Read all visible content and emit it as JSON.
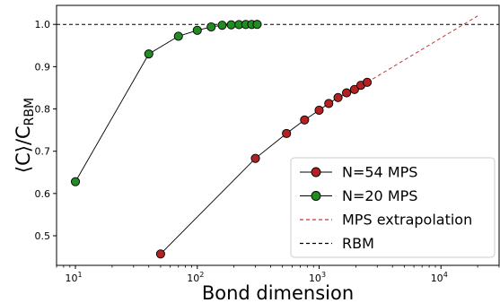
{
  "chart_data": {
    "type": "line",
    "xlabel": "Bond dimension",
    "ylabel_main": "⟨C⟩/C",
    "ylabel_sub": "RBM",
    "xscale": "log",
    "xlim": [
      7,
      30000
    ],
    "ylim": [
      0.43,
      1.045
    ],
    "xticks": [
      {
        "value": 10,
        "base": "10",
        "exp": "1"
      },
      {
        "value": 100,
        "base": "10",
        "exp": "2"
      },
      {
        "value": 1000,
        "base": "10",
        "exp": "3"
      },
      {
        "value": 10000,
        "base": "10",
        "exp": "4"
      }
    ],
    "yticks": [
      {
        "value": 0.5,
        "label": "0.5"
      },
      {
        "value": 0.6,
        "label": "0.6"
      },
      {
        "value": 0.7,
        "label": "0.7"
      },
      {
        "value": 0.8,
        "label": "0.8"
      },
      {
        "value": 0.9,
        "label": "0.9"
      },
      {
        "value": 1.0,
        "label": "1.0"
      }
    ],
    "legend_position": "lower right",
    "series": [
      {
        "name": "N=54 MPS",
        "kind": "markers-line",
        "color": "#b22222",
        "points": [
          {
            "x": 50,
            "y": 0.457
          },
          {
            "x": 300,
            "y": 0.683
          },
          {
            "x": 540,
            "y": 0.742
          },
          {
            "x": 760,
            "y": 0.774
          },
          {
            "x": 1000,
            "y": 0.797
          },
          {
            "x": 1200,
            "y": 0.813
          },
          {
            "x": 1430,
            "y": 0.827
          },
          {
            "x": 1680,
            "y": 0.838
          },
          {
            "x": 1950,
            "y": 0.846
          },
          {
            "x": 2200,
            "y": 0.856
          },
          {
            "x": 2480,
            "y": 0.863
          }
        ]
      },
      {
        "name": "N=20 MPS",
        "kind": "markers-line",
        "color": "#228b22",
        "points": [
          {
            "x": 10,
            "y": 0.628
          },
          {
            "x": 40,
            "y": 0.93
          },
          {
            "x": 70,
            "y": 0.972
          },
          {
            "x": 100,
            "y": 0.986
          },
          {
            "x": 130,
            "y": 0.994
          },
          {
            "x": 160,
            "y": 0.998
          },
          {
            "x": 190,
            "y": 0.999
          },
          {
            "x": 220,
            "y": 0.9995
          },
          {
            "x": 250,
            "y": 0.9998
          },
          {
            "x": 280,
            "y": 0.9999
          },
          {
            "x": 310,
            "y": 1.0
          }
        ]
      },
      {
        "name": "MPS extrapolation",
        "kind": "dashed",
        "color": "#cd3333",
        "points": [
          {
            "x": 2480,
            "y": 0.863
          },
          {
            "x": 20000,
            "y": 1.02
          }
        ]
      },
      {
        "name": "RBM",
        "kind": "dashed",
        "color": "#000000",
        "points": [
          {
            "x": 7,
            "y": 1.0
          },
          {
            "x": 30000,
            "y": 1.0
          }
        ]
      }
    ]
  }
}
